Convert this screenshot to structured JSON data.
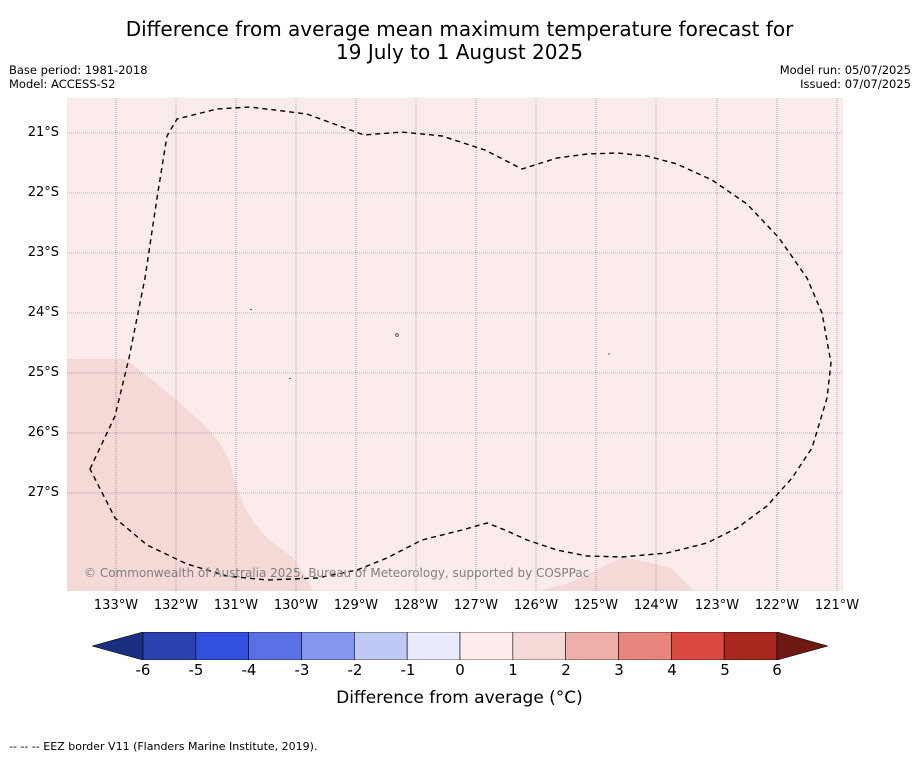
{
  "title": {
    "line1": "Difference from average mean maximum temperature forecast for",
    "line2": "19 July to 1 August 2025"
  },
  "info_left": {
    "base_period": "Base period: 1981-2018",
    "model": "Model: ACCESS-S2"
  },
  "info_right": {
    "model_run": "Model run: 05/07/2025",
    "issued": "Issued: 07/07/2025"
  },
  "map": {
    "latitude_labels": [
      "21°S",
      "22°S",
      "23°S",
      "24°S",
      "25°S",
      "26°S",
      "27°S"
    ],
    "longitude_labels": [
      "133°W",
      "132°W",
      "131°W",
      "130°W",
      "129°W",
      "128°W",
      "127°W",
      "126°W",
      "125°W",
      "124°W",
      "123°W",
      "122°W",
      "121°W"
    ],
    "colors": {
      "background_anomaly": "#fbebea",
      "warmer_region": "#f5d9d7",
      "gridline": "#7a6f8a",
      "eez_border": "#000000"
    },
    "copyright": "© Commonwealth of Australia 2025, Bureau of Meteorology, supported by COSPPac"
  },
  "colorbar": {
    "tick_labels": [
      "-6",
      "-5",
      "-4",
      "-3",
      "-2",
      "-1",
      "0",
      "1",
      "2",
      "3",
      "4",
      "5",
      "6"
    ],
    "colors": [
      "#1b2f80",
      "#2a41b0",
      "#3150e0",
      "#5a71e6",
      "#8596ee",
      "#c0c8f6",
      "#e9ebfb",
      "#fbebea",
      "#f5d9d7",
      "#eeafab",
      "#e8857d",
      "#db4a40",
      "#a82820",
      "#6e1a14"
    ],
    "label": "Difference from average (°C)"
  },
  "legend": "--  --  -- EEZ border V11 (Flanders Marine Institute, 2019)."
}
